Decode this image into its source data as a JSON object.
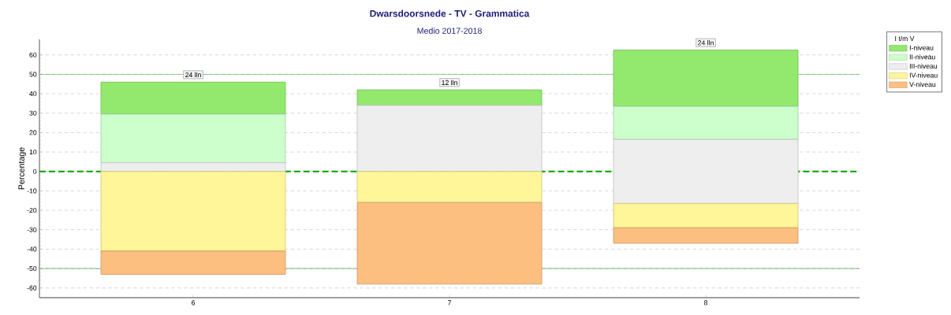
{
  "chart_data": {
    "type": "bar",
    "title": "Dwarsdoorsnede - TV - Grammatica",
    "subtitle": "Medio 2017-2018",
    "ylabel": "Percentage",
    "legend_title": "I t/m V",
    "categories": [
      "6",
      "7",
      "8"
    ],
    "series": [
      {
        "name": "I-niveau",
        "color": "#92e96e",
        "base": [
          29.5,
          34,
          33.5
        ],
        "values": [
          16.5,
          8,
          29
        ]
      },
      {
        "name": "II-niveau",
        "color": "#ccffcc",
        "base": [
          4.5,
          null,
          16.5
        ],
        "values": [
          25,
          null,
          17
        ]
      },
      {
        "name": "III-niveau",
        "color": "#eeeeee",
        "base": [
          0,
          0,
          -16.5
        ],
        "values": [
          4.5,
          34,
          33
        ]
      },
      {
        "name": "IV-niveau",
        "color": "#fff599",
        "base": [
          -41,
          -16,
          -29
        ],
        "values": [
          41,
          16,
          12.5
        ]
      },
      {
        "name": "V-niveau",
        "color": "#fdbf80",
        "base": [
          -53,
          -58,
          -37
        ],
        "values": [
          12,
          42,
          8
        ]
      }
    ],
    "ylim": [
      -65,
      68
    ],
    "yticks": [
      -60,
      -50,
      -40,
      -30,
      -20,
      -10,
      0,
      10,
      20,
      30,
      40,
      50,
      60
    ],
    "grid": "y",
    "legend": "top right",
    "ref_lines": [
      {
        "axis": "y",
        "value": 0,
        "color": "#00a000",
        "line_style": "dashed"
      },
      {
        "axis": "y",
        "value": 50,
        "color": "#5cb85c",
        "line_style": "solid"
      },
      {
        "axis": "y",
        "value": -50,
        "color": "#3a9a3a",
        "line_style": "solid"
      }
    ],
    "annotations": [
      {
        "text": "24 lln",
        "x": "6",
        "y": 46
      },
      {
        "text": "12 lln",
        "x": "7",
        "y": 42
      },
      {
        "text": "24 lln",
        "x": "8",
        "y": 62.5
      }
    ]
  }
}
